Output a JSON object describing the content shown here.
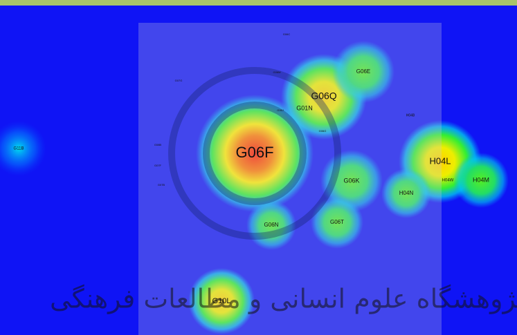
{
  "nodes": [
    {
      "label": "G06F"
    },
    {
      "label": "G06Q"
    },
    {
      "label": "G01N"
    },
    {
      "label": "G06E"
    },
    {
      "label": "G06K"
    },
    {
      "label": "G06T"
    },
    {
      "label": "G06N"
    },
    {
      "label": "G10L"
    },
    {
      "label": "H04L"
    },
    {
      "label": "H04W"
    },
    {
      "label": "H04M"
    },
    {
      "label": "H04N"
    },
    {
      "label": "H04B"
    },
    {
      "label": "G11B"
    },
    {
      "label": "G06C"
    },
    {
      "label": "G07G"
    },
    {
      "label": "G06M"
    },
    {
      "label": "G06J"
    },
    {
      "label": "G06G"
    },
    {
      "label": "G08B"
    },
    {
      "label": "G07F"
    },
    {
      "label": "G07B"
    }
  ],
  "watermark": "پژوهشگاه علوم انسانی و مطالعات فرهنگی"
}
